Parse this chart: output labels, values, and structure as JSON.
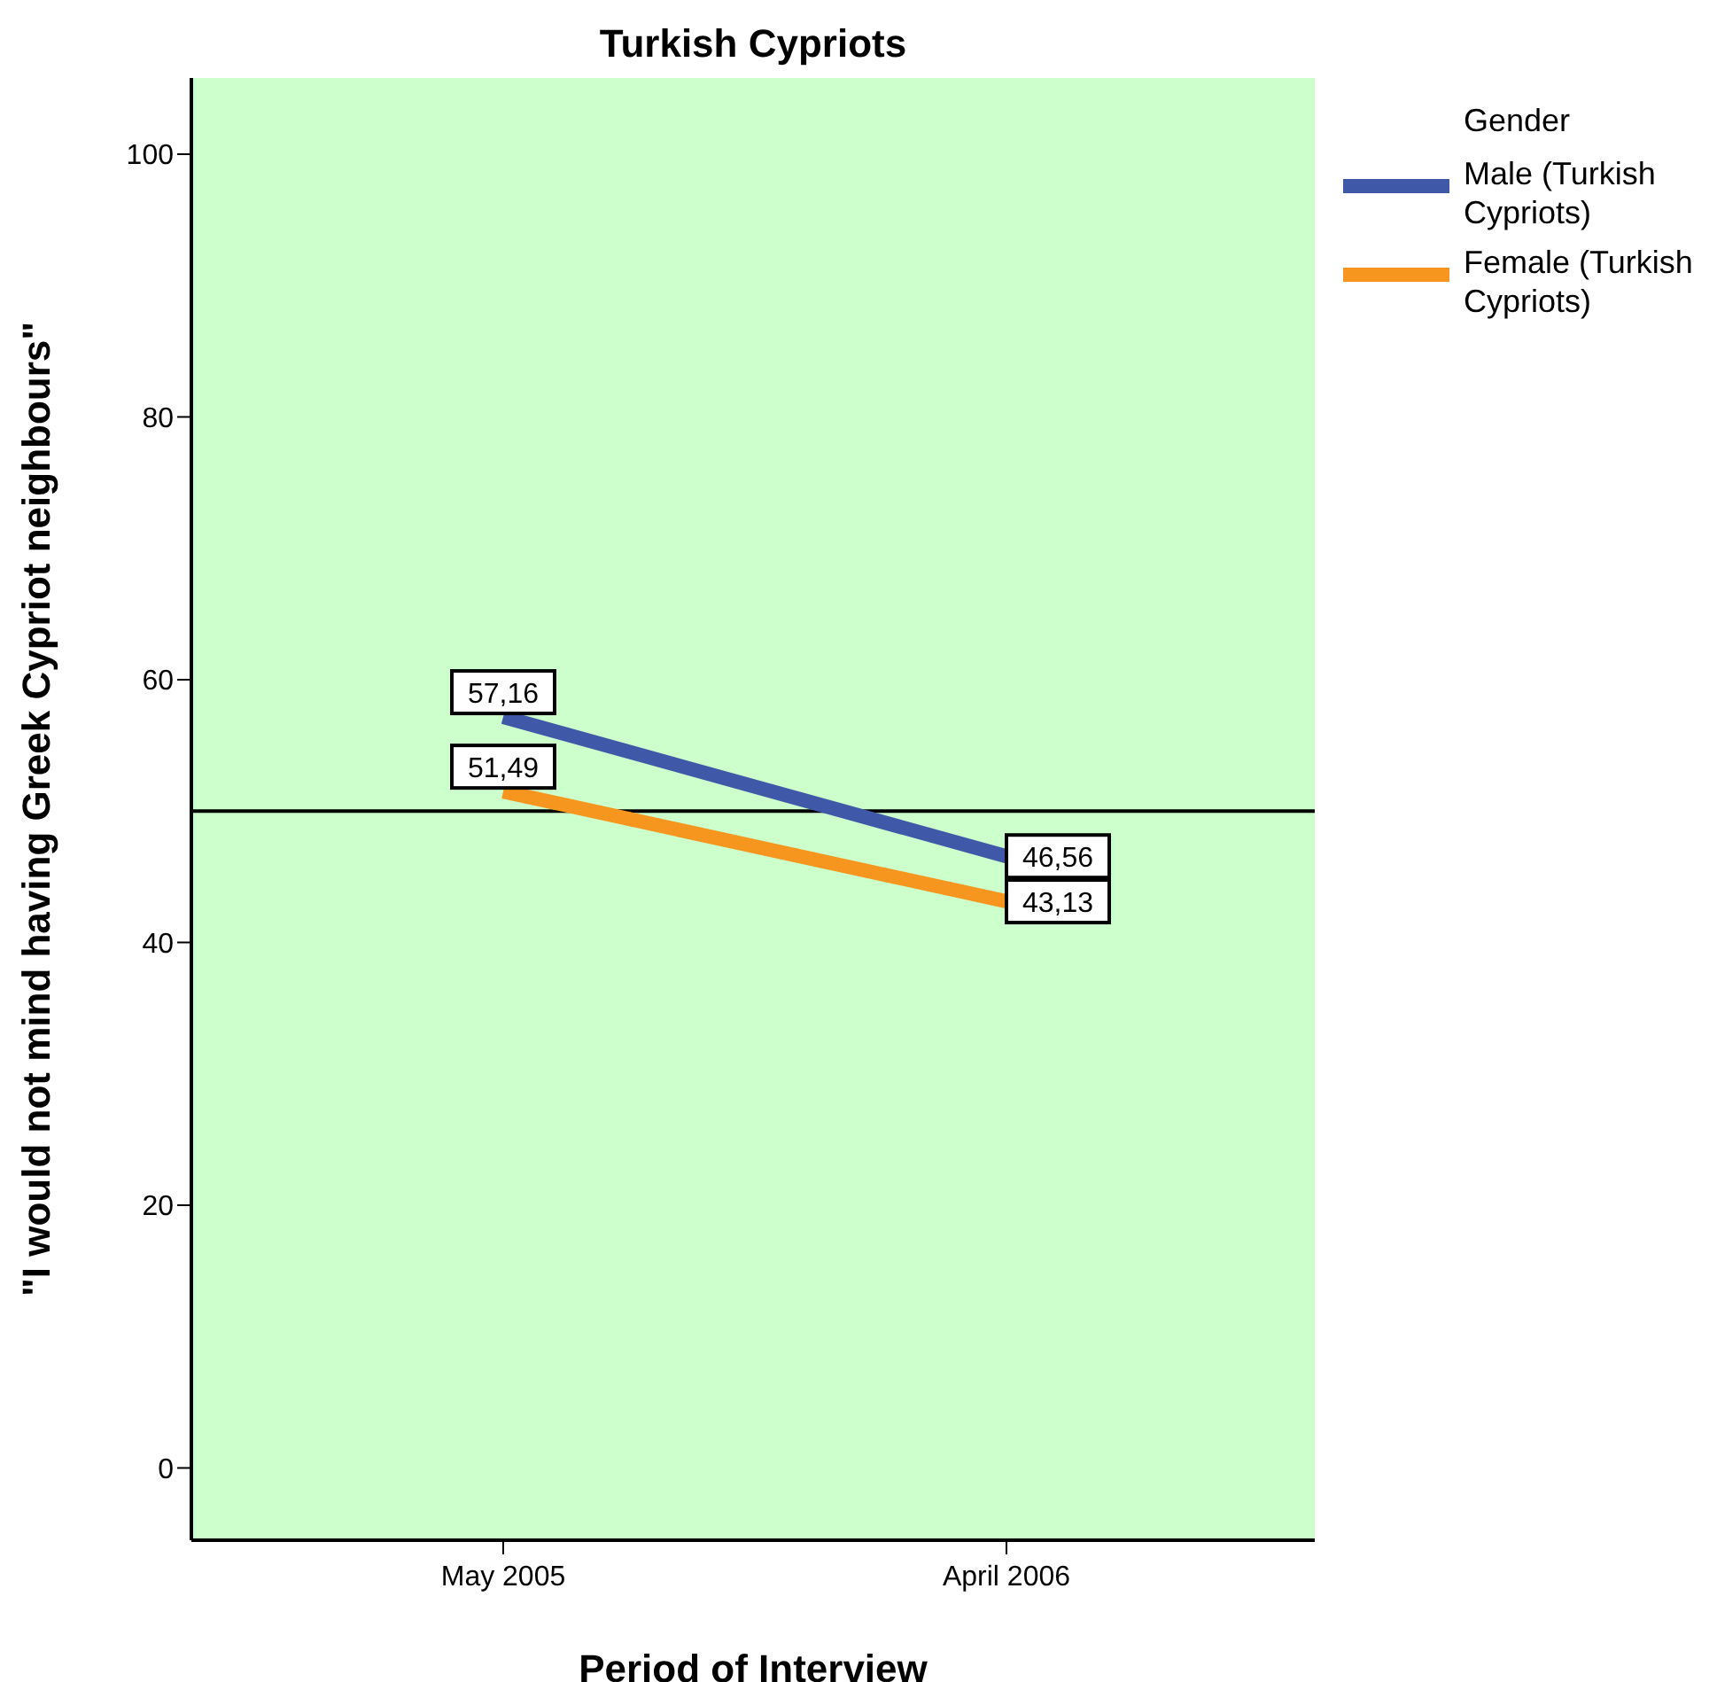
{
  "chart_data": {
    "type": "line",
    "title": "Turkish Cypriots",
    "xlabel": "Period of Interview",
    "ylabel": "\"I would not mind having Greek Cypriot neighbours\"",
    "legend_title": "Gender",
    "legend": "top right",
    "marker": "none",
    "line_style": "solid",
    "categories": [
      "May 2005",
      "April 2006"
    ],
    "series": [
      {
        "name": "Male (Turkish Cypriots)",
        "color": "#3f59a8",
        "values": [
          57.16,
          46.56
        ],
        "value_labels": [
          "57,16",
          "46,56"
        ]
      },
      {
        "name": "Female (Turkish Cypriots)",
        "color": "#f7961e",
        "values": [
          51.49,
          43.13
        ],
        "value_labels": [
          "51,49",
          "43,13"
        ]
      }
    ],
    "ylim": [
      -5.5,
      105.8
    ],
    "yticks": [
      0,
      20,
      40,
      60,
      80,
      100
    ],
    "ref_lines": [
      {
        "axis": "y",
        "value": 50,
        "color": "#000000"
      }
    ]
  }
}
